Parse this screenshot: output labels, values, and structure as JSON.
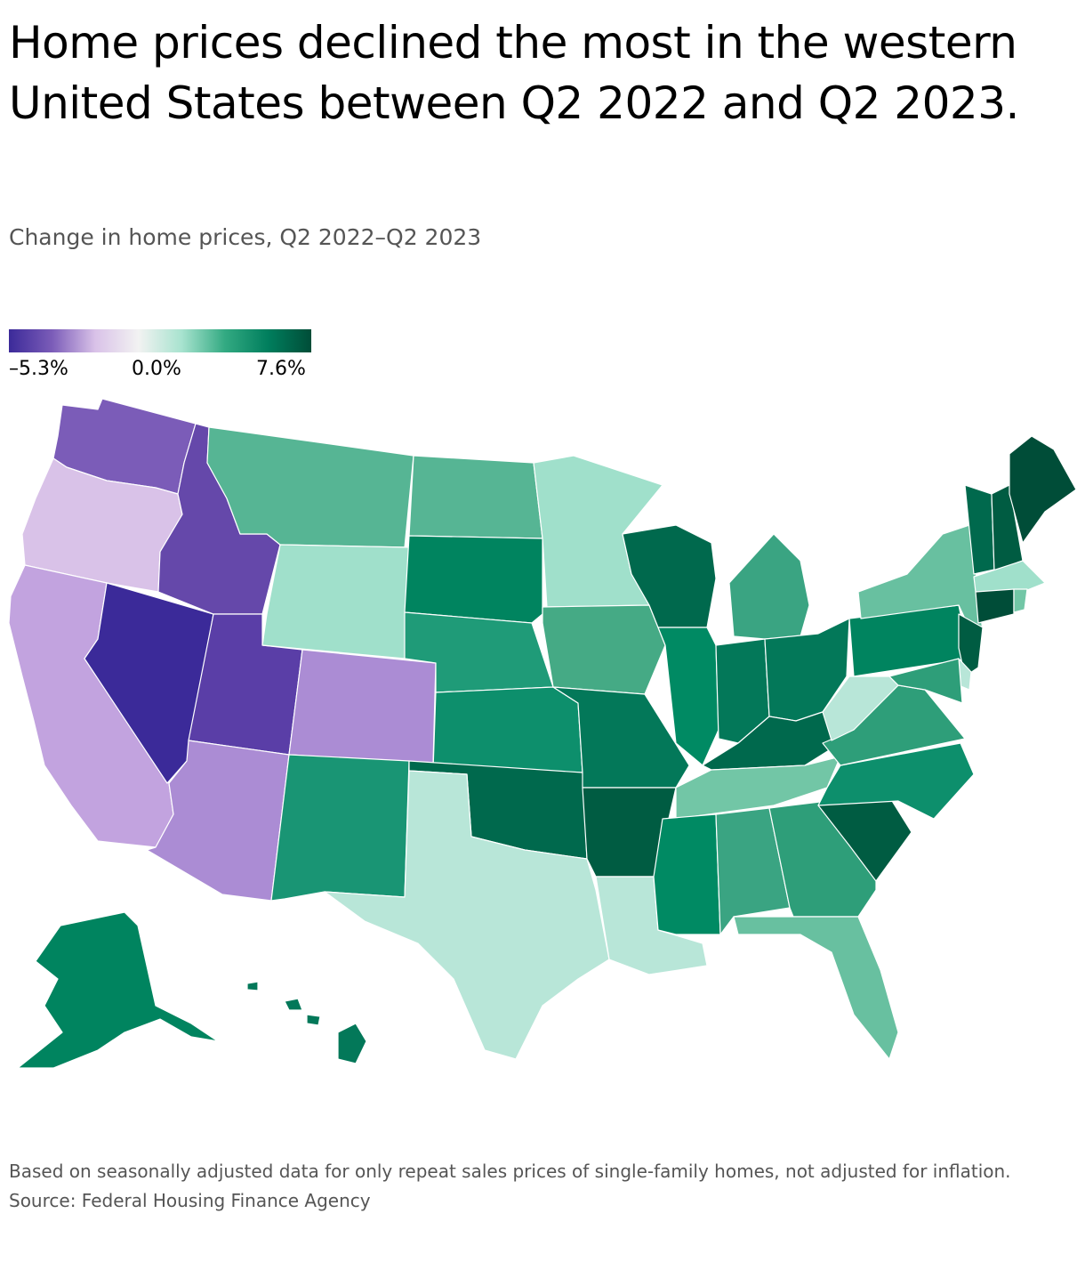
{
  "title": "Home prices declined the most in the western United States between Q2 2022 and Q2 2023.",
  "subtitle": "Change in home prices, Q2 2022–Q2 2023",
  "legend": {
    "min_label": "–5.3%",
    "mid_label": "0.0%",
    "max_label": "7.6%",
    "min_value": -5.3,
    "max_value": 7.6,
    "colors": [
      "#3b2a99",
      "#7b5cb8",
      "#d9c2e8",
      "#f2f2f2",
      "#a8e3cf",
      "#33aa82",
      "#007e5d",
      "#004d38"
    ]
  },
  "footer": {
    "note": "Based on seasonally adjusted data for only repeat sales prices of single-family homes, not adjusted for inflation.",
    "source": "Source: Federal Housing Finance Agency"
  },
  "map_data": {
    "type": "choropleth",
    "metric": "Change in home prices",
    "states": [
      {
        "name": "Washington",
        "color": "#7b5cb8"
      },
      {
        "name": "Oregon",
        "color": "#d9c2e8"
      },
      {
        "name": "California",
        "color": "#c2a3df"
      },
      {
        "name": "Nevada",
        "color": "#3b2a99"
      },
      {
        "name": "Idaho",
        "color": "#6548aa"
      },
      {
        "name": "Utah",
        "color": "#5a3ea7"
      },
      {
        "name": "Arizona",
        "color": "#ab8cd4"
      },
      {
        "name": "Colorado",
        "color": "#ab8cd4"
      },
      {
        "name": "Montana",
        "color": "#56b594"
      },
      {
        "name": "Wyoming",
        "color": "#a0e0cb"
      },
      {
        "name": "New Mexico",
        "color": "#199574"
      },
      {
        "name": "North Dakota",
        "color": "#56b594"
      },
      {
        "name": "South Dakota",
        "color": "#00845f"
      },
      {
        "name": "Nebraska",
        "color": "#1f9b78"
      },
      {
        "name": "Kansas",
        "color": "#0d8f6c"
      },
      {
        "name": "Oklahoma",
        "color": "#00694d"
      },
      {
        "name": "Texas",
        "color": "#b8e6d8"
      },
      {
        "name": "Minnesota",
        "color": "#a0e0cb"
      },
      {
        "name": "Iowa",
        "color": "#45aa85"
      },
      {
        "name": "Missouri",
        "color": "#037859"
      },
      {
        "name": "Arkansas",
        "color": "#005c42"
      },
      {
        "name": "Louisiana",
        "color": "#b8e6d8"
      },
      {
        "name": "Wisconsin",
        "color": "#00694d"
      },
      {
        "name": "Illinois",
        "color": "#008a63"
      },
      {
        "name": "Michigan",
        "color": "#3aa482"
      },
      {
        "name": "Indiana",
        "color": "#037859"
      },
      {
        "name": "Ohio",
        "color": "#037859"
      },
      {
        "name": "Kentucky",
        "color": "#00694d"
      },
      {
        "name": "Tennessee",
        "color": "#72c6a6"
      },
      {
        "name": "Mississippi",
        "color": "#008a63"
      },
      {
        "name": "Alabama",
        "color": "#3aa482"
      },
      {
        "name": "Georgia",
        "color": "#2e9e79"
      },
      {
        "name": "Florida",
        "color": "#68c0a0"
      },
      {
        "name": "South Carolina",
        "color": "#005c42"
      },
      {
        "name": "North Carolina",
        "color": "#0d8f6c"
      },
      {
        "name": "Virginia",
        "color": "#2e9e79"
      },
      {
        "name": "West Virginia",
        "color": "#b8e6d8"
      },
      {
        "name": "Pennsylvania",
        "color": "#00845f"
      },
      {
        "name": "New York",
        "color": "#68c0a0"
      },
      {
        "name": "Vermont",
        "color": "#00694d"
      },
      {
        "name": "New Hampshire",
        "color": "#005c42"
      },
      {
        "name": "Maine",
        "color": "#004d38"
      },
      {
        "name": "Massachusetts",
        "color": "#a0e0cb"
      },
      {
        "name": "Connecticut",
        "color": "#004d38"
      },
      {
        "name": "Rhode Island",
        "color": "#72c6a6"
      },
      {
        "name": "New Jersey",
        "color": "#005c42"
      },
      {
        "name": "Delaware",
        "color": "#b8e6d8"
      },
      {
        "name": "Maryland",
        "color": "#2e9e79"
      },
      {
        "name": "Alaska",
        "color": "#00845f"
      },
      {
        "name": "Hawaii",
        "color": "#037859"
      }
    ]
  }
}
